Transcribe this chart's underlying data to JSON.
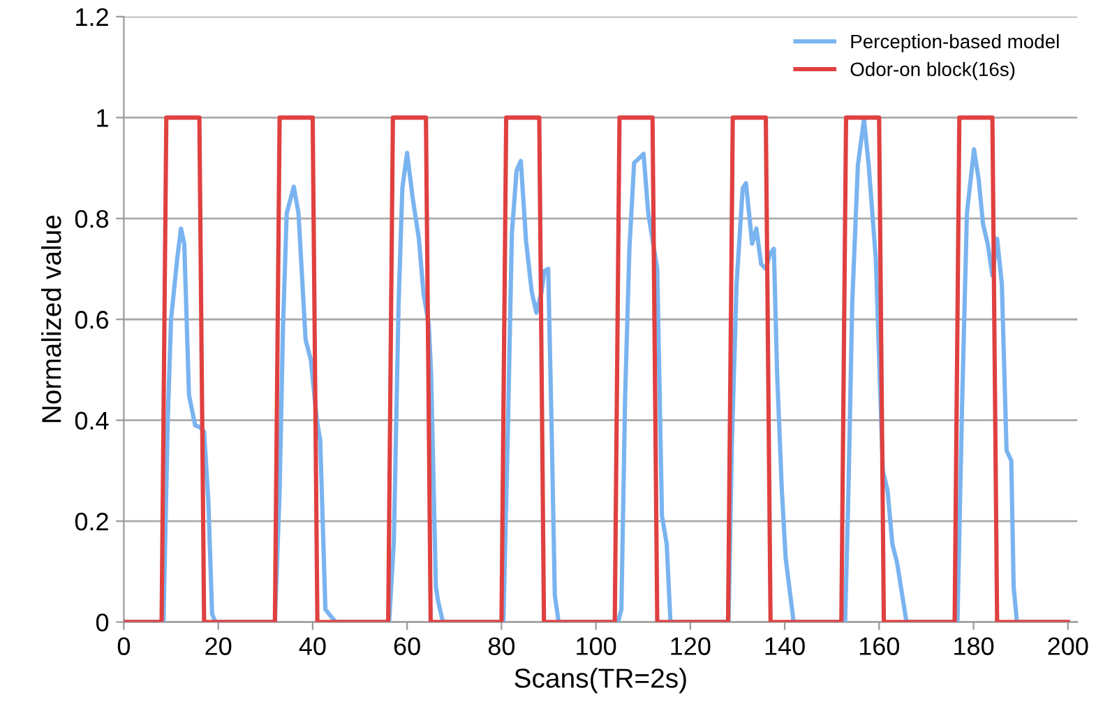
{
  "chart_data": {
    "type": "line",
    "xlabel": "Scans(TR=2s)",
    "ylabel": "Normalized value",
    "xlim": [
      0,
      202
    ],
    "xticks": [
      0,
      20,
      40,
      60,
      80,
      100,
      120,
      140,
      160,
      180,
      200
    ],
    "ylim": [
      0,
      1.2
    ],
    "yticks": [
      {
        "value": 0,
        "label": "0"
      },
      {
        "value": 0.2,
        "label": "0.2"
      },
      {
        "value": 0.4,
        "label": "0.4"
      },
      {
        "value": 0.6,
        "label": "0.6"
      },
      {
        "value": 0.8,
        "label": "0.8"
      },
      {
        "value": 1,
        "label": "1"
      },
      {
        "value": 1.2,
        "label": "1.2"
      }
    ],
    "grid": "y",
    "legend": "top right",
    "marker": "none",
    "line_style": "solid",
    "series": [
      {
        "name": "Perception-based model",
        "color": "#7ab4f0",
        "x": [
          0,
          8.4,
          9.3,
          10.0,
          11.3,
          12.1,
          12.8,
          13.8,
          15.1,
          16.2,
          17.0,
          17.9,
          18.7,
          19.4,
          32.0,
          33.0,
          33.7,
          34.5,
          36.0,
          37.0,
          38.5,
          39.6,
          40.9,
          41.6,
          42.7,
          43.9,
          44.9,
          56.2,
          57.2,
          58.2,
          59.0,
          60.0,
          61.2,
          62.5,
          63.5,
          64.6,
          65.1,
          66.1,
          66.6,
          67.6,
          80.4,
          81.4,
          82.2,
          83.2,
          84.1,
          85.2,
          86.4,
          87.4,
          88.5,
          89.1,
          89.9,
          90.6,
          91.3,
          92.1,
          104.7,
          105.4,
          106.2,
          107.1,
          108.1,
          110.1,
          111.1,
          113.0,
          114.0,
          115.0,
          115.8,
          128.1,
          128.8,
          129.8,
          131.1,
          131.8,
          133.1,
          134.0,
          135.0,
          136.0,
          136.9,
          137.7,
          138.4,
          139.4,
          140.2,
          141.9,
          152.8,
          153.5,
          154.3,
          155.5,
          156.8,
          157.8,
          159.3,
          160.8,
          161.8,
          162.8,
          163.8,
          165.8,
          176.6,
          177.6,
          178.6,
          180.1,
          181.1,
          182.0,
          183.0,
          184.0,
          185.0,
          186.0,
          187.0,
          188.0,
          188.5,
          189.2,
          200
        ],
        "values": [
          0,
          0,
          0.4,
          0.6,
          0.72,
          0.78,
          0.75,
          0.45,
          0.39,
          0.386,
          0.377,
          0.24,
          0.016,
          0,
          0,
          0.26,
          0.58,
          0.81,
          0.863,
          0.81,
          0.56,
          0.52,
          0.4,
          0.36,
          0.025,
          0.011,
          0,
          0,
          0.16,
          0.63,
          0.86,
          0.93,
          0.84,
          0.76,
          0.65,
          0.59,
          0.49,
          0.07,
          0.04,
          0,
          0,
          0.4,
          0.77,
          0.895,
          0.914,
          0.756,
          0.655,
          0.613,
          0.655,
          0.696,
          0.7,
          0.395,
          0.053,
          0,
          0,
          0.025,
          0.45,
          0.74,
          0.91,
          0.928,
          0.81,
          0.7,
          0.21,
          0.155,
          0,
          0,
          0.35,
          0.67,
          0.86,
          0.87,
          0.75,
          0.78,
          0.71,
          0.7,
          0.73,
          0.74,
          0.49,
          0.26,
          0.127,
          0,
          0,
          0.26,
          0.63,
          0.905,
          0.997,
          0.905,
          0.72,
          0.3,
          0.26,
          0.155,
          0.118,
          0,
          0,
          0.44,
          0.81,
          0.937,
          0.877,
          0.79,
          0.75,
          0.687,
          0.76,
          0.67,
          0.34,
          0.32,
          0.07,
          0,
          0
        ]
      },
      {
        "name": "Odor-on block(16s)",
        "color": "#e04040",
        "x": [
          0,
          8,
          9,
          16,
          17,
          32,
          33,
          40,
          41,
          56,
          57,
          64,
          65,
          80,
          81,
          88,
          89,
          104,
          105,
          112,
          113,
          128,
          129,
          136,
          137,
          152,
          153,
          160,
          161,
          176,
          177,
          184,
          185,
          200
        ],
        "values": [
          0,
          0,
          1,
          1,
          0,
          0,
          1,
          1,
          0,
          0,
          1,
          1,
          0,
          0,
          1,
          1,
          0,
          0,
          1,
          1,
          0,
          0,
          1,
          1,
          0,
          0,
          1,
          1,
          0,
          0,
          1,
          1,
          0,
          0
        ]
      }
    ]
  }
}
